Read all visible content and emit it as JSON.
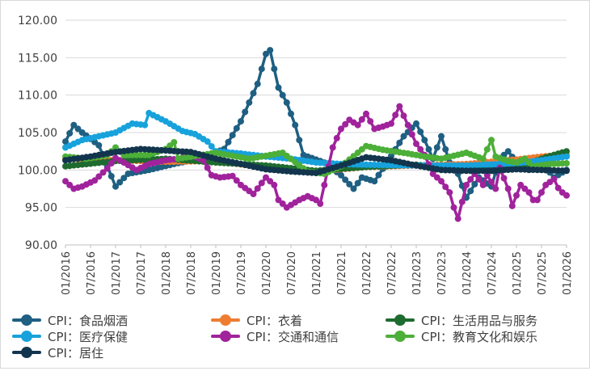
{
  "chart_data": {
    "type": "line",
    "title": "",
    "xlabel": "",
    "ylabel": "",
    "ylim": [
      90,
      120
    ],
    "y_ticks": [
      "90.00",
      "95.00",
      "100.00",
      "105.00",
      "110.00",
      "115.00",
      "120.00"
    ],
    "x_ticks": [
      "01/2016",
      "07/2016",
      "01/2017",
      "07/2017",
      "01/2018",
      "07/2018",
      "01/2019",
      "07/2019",
      "01/2020",
      "07/2020",
      "01/2021",
      "07/2021",
      "01/2022",
      "07/2022",
      "01/2023",
      "07/2023",
      "01/2024",
      "07/2024",
      "01/2025",
      "07/2025",
      "01/2026"
    ],
    "grid": "horizontal",
    "legend_position": "bottom",
    "series": [
      {
        "name": "CPI：食品烟酒",
        "color": "#1f5f82",
        "knots": [
          [
            0,
            103.8
          ],
          [
            2,
            106.0
          ],
          [
            4,
            105.0
          ],
          [
            8,
            103.3
          ],
          [
            12,
            97.8
          ],
          [
            15,
            99.5
          ],
          [
            20,
            100.0
          ],
          [
            26,
            100.8
          ],
          [
            32,
            101.5
          ],
          [
            38,
            102.8
          ],
          [
            42,
            106.5
          ],
          [
            46,
            111.5
          ],
          [
            48,
            115.5
          ],
          [
            49,
            116.0
          ],
          [
            51,
            111.0
          ],
          [
            53,
            109.0
          ],
          [
            55,
            106.0
          ],
          [
            57,
            102.0
          ],
          [
            62,
            101.0
          ],
          [
            66,
            99.3
          ],
          [
            69,
            97.5
          ],
          [
            71,
            99.0
          ],
          [
            74,
            98.5
          ],
          [
            77,
            101.0
          ],
          [
            81,
            104.5
          ],
          [
            84,
            106.2
          ],
          [
            86,
            104.0
          ],
          [
            88,
            101.5
          ],
          [
            90,
            104.5
          ],
          [
            92,
            101.0
          ],
          [
            94,
            99.5
          ],
          [
            96,
            96.3
          ],
          [
            99,
            99.0
          ],
          [
            102,
            97.8
          ],
          [
            104,
            101.5
          ],
          [
            106,
            102.5
          ],
          [
            108,
            101.0
          ],
          [
            111,
            100.0
          ],
          [
            114,
            101.0
          ],
          [
            117,
            99.0
          ],
          [
            120,
            100.0
          ]
        ]
      },
      {
        "name": "CPI：衣着",
        "color": "#ed7d31",
        "knots": [
          [
            0,
            101.5
          ],
          [
            12,
            101.3
          ],
          [
            24,
            101.1
          ],
          [
            36,
            101.2
          ],
          [
            48,
            100.3
          ],
          [
            60,
            99.8
          ],
          [
            72,
            100.4
          ],
          [
            84,
            100.6
          ],
          [
            96,
            100.8
          ],
          [
            108,
            101.4
          ],
          [
            114,
            101.8
          ],
          [
            120,
            102.0
          ]
        ]
      },
      {
        "name": "CPI：生活用品与服务",
        "color": "#1e6b2f",
        "knots": [
          [
            0,
            100.5
          ],
          [
            12,
            101.2
          ],
          [
            24,
            101.5
          ],
          [
            36,
            101.0
          ],
          [
            48,
            100.6
          ],
          [
            60,
            99.9
          ],
          [
            72,
            100.4
          ],
          [
            84,
            100.7
          ],
          [
            96,
            100.2
          ],
          [
            108,
            100.3
          ],
          [
            115,
            101.7
          ],
          [
            120,
            102.5
          ]
        ]
      },
      {
        "name": "CPI：医疗保健",
        "color": "#17a2dc",
        "knots": [
          [
            0,
            103.0
          ],
          [
            4,
            104.0
          ],
          [
            8,
            104.5
          ],
          [
            12,
            105.0
          ],
          [
            16,
            106.2
          ],
          [
            19,
            106.0
          ],
          [
            20,
            107.6
          ],
          [
            24,
            106.5
          ],
          [
            28,
            105.2
          ],
          [
            31,
            104.8
          ],
          [
            34,
            103.8
          ],
          [
            36,
            102.5
          ],
          [
            42,
            102.2
          ],
          [
            48,
            101.8
          ],
          [
            54,
            101.5
          ],
          [
            60,
            101.0
          ],
          [
            66,
            100.8
          ],
          [
            72,
            100.7
          ],
          [
            84,
            100.6
          ],
          [
            96,
            100.6
          ],
          [
            108,
            100.9
          ],
          [
            114,
            101.3
          ],
          [
            120,
            101.8
          ]
        ]
      },
      {
        "name": "CPI：交通和通信",
        "color": "#a0239c",
        "knots": [
          [
            0,
            98.5
          ],
          [
            2,
            97.5
          ],
          [
            4,
            97.8
          ],
          [
            7,
            98.6
          ],
          [
            10,
            100.2
          ],
          [
            12,
            101.6
          ],
          [
            14,
            101.0
          ],
          [
            17,
            100.0
          ],
          [
            20,
            100.8
          ],
          [
            24,
            101.3
          ],
          [
            27,
            101.5
          ],
          [
            30,
            102.0
          ],
          [
            33,
            101.3
          ],
          [
            35,
            99.3
          ],
          [
            37,
            99.0
          ],
          [
            40,
            99.2
          ],
          [
            42,
            98.0
          ],
          [
            45,
            96.8
          ],
          [
            48,
            99.0
          ],
          [
            50,
            98.0
          ],
          [
            51,
            96.0
          ],
          [
            53,
            95.0
          ],
          [
            56,
            96.0
          ],
          [
            58,
            96.5
          ],
          [
            60,
            96.0
          ],
          [
            61,
            95.5
          ],
          [
            62,
            98.0
          ],
          [
            64,
            103.0
          ],
          [
            66,
            105.5
          ],
          [
            68,
            106.7
          ],
          [
            70,
            106.0
          ],
          [
            72,
            107.5
          ],
          [
            74,
            105.5
          ],
          [
            76,
            105.8
          ],
          [
            78,
            106.2
          ],
          [
            80,
            108.5
          ],
          [
            82,
            106.0
          ],
          [
            84,
            103.5
          ],
          [
            86,
            102.0
          ],
          [
            88,
            99.5
          ],
          [
            90,
            98.5
          ],
          [
            92,
            97.0
          ],
          [
            93,
            95.0
          ],
          [
            94,
            93.5
          ],
          [
            96,
            98.0
          ],
          [
            98,
            99.5
          ],
          [
            100,
            98.0
          ],
          [
            101,
            99.3
          ],
          [
            103,
            97.5
          ],
          [
            104,
            100.3
          ],
          [
            106,
            97.5
          ],
          [
            107,
            95.2
          ],
          [
            109,
            98.0
          ],
          [
            111,
            97.0
          ],
          [
            112,
            96.0
          ],
          [
            113,
            96.0
          ],
          [
            115,
            98.0
          ],
          [
            117,
            98.8
          ],
          [
            118,
            97.6
          ],
          [
            119,
            97.0
          ],
          [
            120,
            96.6
          ]
        ]
      },
      {
        "name": "CPI：教育文化和娱乐",
        "color": "#4caf38",
        "knots": [
          [
            0,
            101.8
          ],
          [
            5,
            101.5
          ],
          [
            10,
            102.0
          ],
          [
            12,
            103.0
          ],
          [
            14,
            102.0
          ],
          [
            20,
            102.0
          ],
          [
            24,
            102.8
          ],
          [
            26,
            103.7
          ],
          [
            27,
            101.5
          ],
          [
            36,
            102.3
          ],
          [
            44,
            101.5
          ],
          [
            52,
            102.3
          ],
          [
            58,
            99.8
          ],
          [
            62,
            99.5
          ],
          [
            66,
            100.5
          ],
          [
            70,
            102.3
          ],
          [
            72,
            103.2
          ],
          [
            76,
            102.7
          ],
          [
            82,
            102.2
          ],
          [
            86,
            101.8
          ],
          [
            90,
            101.5
          ],
          [
            96,
            102.3
          ],
          [
            100,
            101.5
          ],
          [
            102,
            104.0
          ],
          [
            103,
            101.8
          ],
          [
            106,
            101.2
          ],
          [
            108,
            101.0
          ],
          [
            110,
            101.5
          ],
          [
            112,
            100.5
          ],
          [
            116,
            100.8
          ],
          [
            120,
            100.9
          ]
        ]
      },
      {
        "name": "CPI：居住",
        "color": "#12354d",
        "knots": [
          [
            0,
            101.3
          ],
          [
            6,
            101.8
          ],
          [
            12,
            102.4
          ],
          [
            18,
            102.8
          ],
          [
            24,
            102.6
          ],
          [
            30,
            102.4
          ],
          [
            36,
            101.5
          ],
          [
            42,
            100.8
          ],
          [
            48,
            100.1
          ],
          [
            54,
            99.8
          ],
          [
            60,
            99.6
          ],
          [
            66,
            100.6
          ],
          [
            72,
            101.7
          ],
          [
            78,
            101.3
          ],
          [
            84,
            100.6
          ],
          [
            90,
            100.0
          ],
          [
            96,
            99.9
          ],
          [
            102,
            99.9
          ],
          [
            108,
            100.1
          ],
          [
            114,
            100.0
          ],
          [
            120,
            99.9
          ]
        ]
      }
    ]
  }
}
